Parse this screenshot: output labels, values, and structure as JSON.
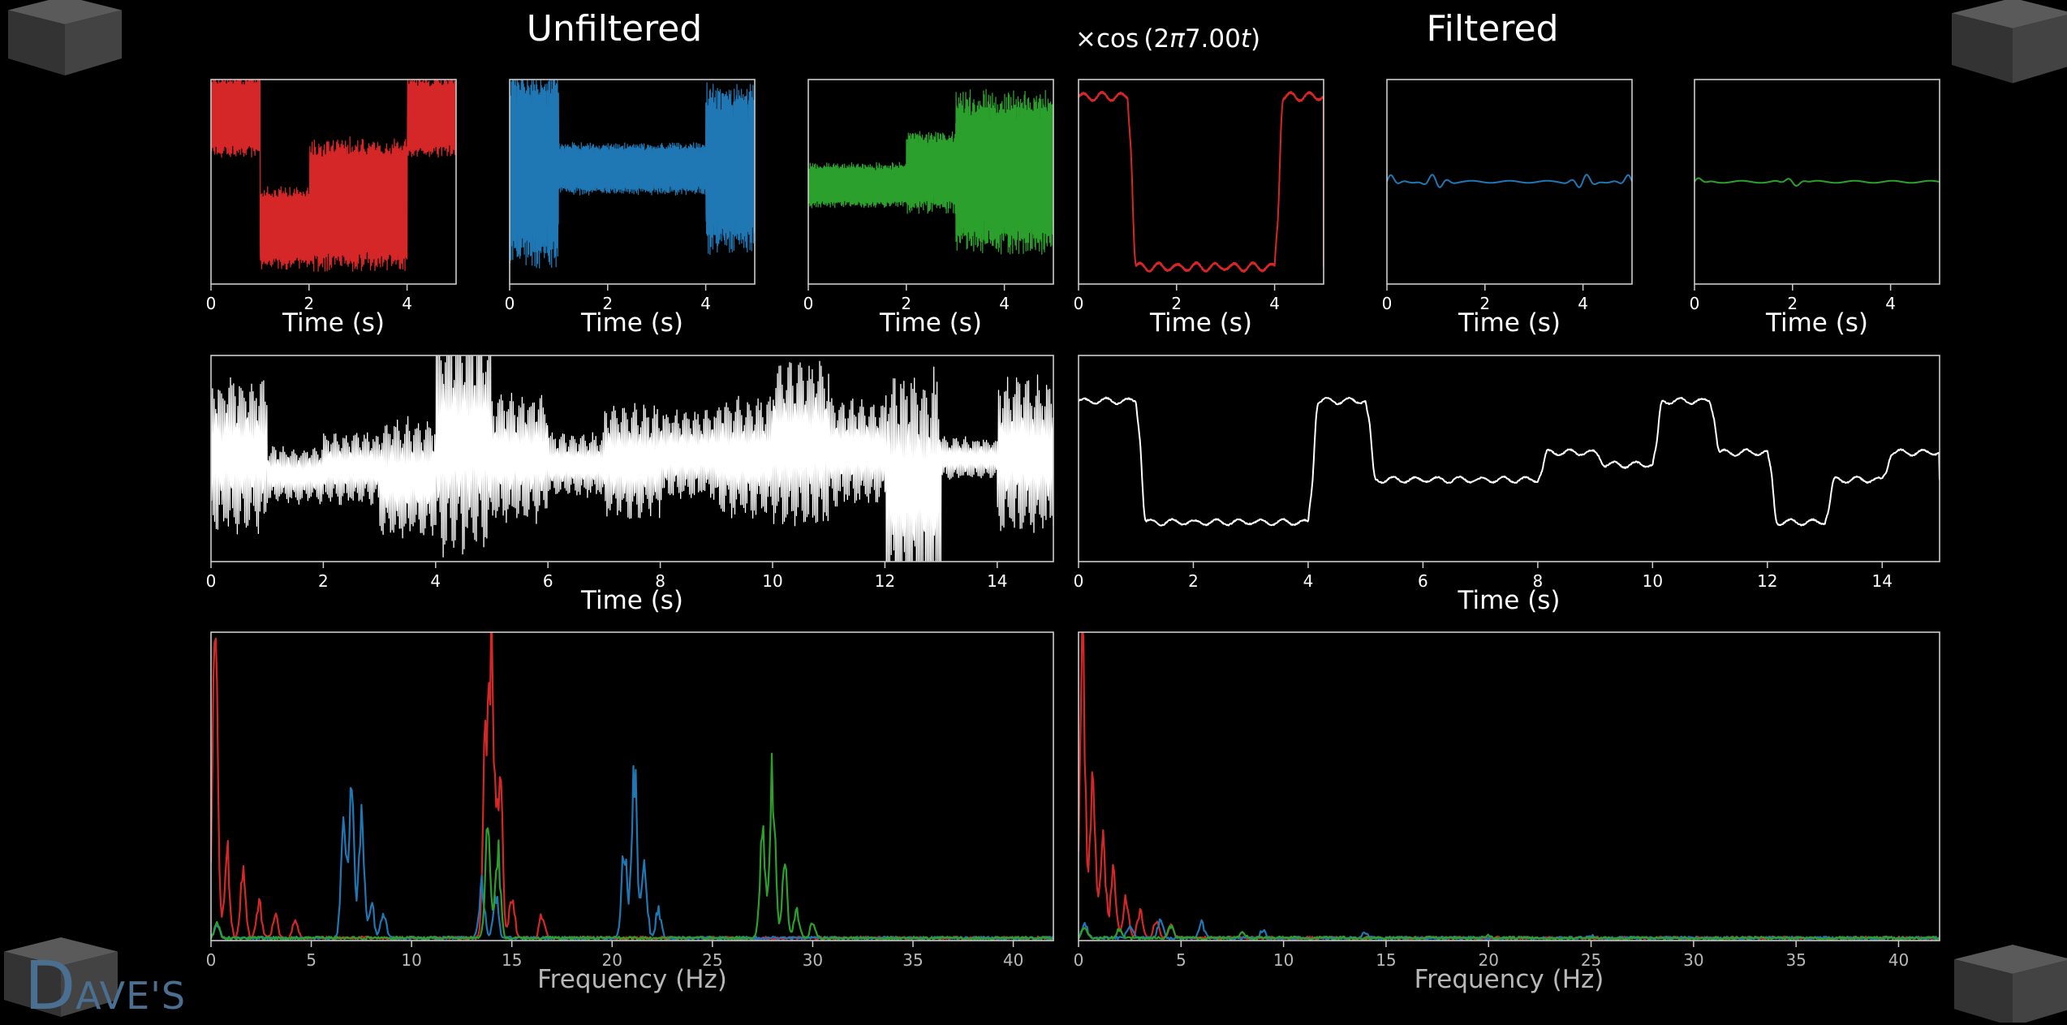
{
  "headings": {
    "unfiltered": "Unfiltered",
    "filtered": "Filtered",
    "multiplier": {
      "prefix": "×cos (2",
      "pi": "π",
      "value": "7.00",
      "var": "t",
      "suffix": ")"
    }
  },
  "logo": {
    "letter": "D",
    "rest": "AVE'S"
  },
  "colors": {
    "red": "#d62728",
    "blue": "#1f77b4",
    "green": "#2ca02c",
    "white": "#ffffff",
    "axis": "#cccccc",
    "background": "#000000"
  },
  "chart_data": [
    {
      "id": "unfiltered-red",
      "type": "line",
      "color": "red",
      "xlabel": "Time (s)",
      "xticks": [
        "0",
        "2",
        "4"
      ],
      "xlim": [
        0,
        5
      ],
      "ylim": [
        -1.55,
        1.55
      ],
      "signal": {
        "kind": "modulated",
        "carrier_hz": 7,
        "segments": [
          {
            "t": [
              0,
              1
            ],
            "level": 1,
            "amp": 0.55
          },
          {
            "t": [
              1,
              2
            ],
            "level": -0.7,
            "amp": 0.55
          },
          {
            "t": [
              2,
              4
            ],
            "level": -0.35,
            "amp": 0.9
          },
          {
            "t": [
              4,
              5
            ],
            "level": 1,
            "amp": 0.55
          }
        ]
      }
    },
    {
      "id": "unfiltered-blue",
      "type": "line",
      "color": "blue",
      "xlabel": "Time (s)",
      "xticks": [
        "0",
        "2",
        "4"
      ],
      "xlim": [
        0,
        5
      ],
      "ylim": [
        -1.55,
        1.55
      ],
      "signal": {
        "kind": "modulated",
        "carrier_hz": 14,
        "segments": [
          {
            "t": [
              0,
              1
            ],
            "level": 0.2,
            "amp": 1.35
          },
          {
            "t": [
              1,
              4
            ],
            "level": 0.2,
            "amp": 0.35
          },
          {
            "t": [
              4,
              5
            ],
            "level": 0.2,
            "amp": 1.15
          }
        ]
      }
    },
    {
      "id": "unfiltered-green",
      "type": "line",
      "color": "green",
      "xlabel": "Time (s)",
      "xticks": [
        "0",
        "2",
        "4"
      ],
      "xlim": [
        0,
        5
      ],
      "ylim": [
        -1.55,
        1.55
      ],
      "signal": {
        "kind": "modulated",
        "carrier_hz": 21,
        "segments": [
          {
            "t": [
              0,
              2
            ],
            "level": -0.05,
            "amp": 0.3
          },
          {
            "t": [
              2,
              3
            ],
            "level": 0.15,
            "amp": 0.55
          },
          {
            "t": [
              3,
              5
            ],
            "level": 0.15,
            "amp": 1.1
          }
        ]
      }
    },
    {
      "id": "filtered-red",
      "type": "line",
      "color": "red",
      "xlabel": "Time (s)",
      "xticks": [
        "0",
        "2",
        "4"
      ],
      "xlim": [
        0,
        5
      ],
      "ylim": [
        -1.2,
        1.2
      ],
      "signal": {
        "kind": "step",
        "levels": [
          1,
          -1,
          -1,
          -1,
          1
        ]
      }
    },
    {
      "id": "filtered-blue",
      "type": "line",
      "color": "blue",
      "xlabel": "Time (s)",
      "xticks": [
        "0",
        "2",
        "4"
      ],
      "xlim": [
        0,
        5
      ],
      "ylim": [
        -1.2,
        1.2
      ],
      "signal": {
        "kind": "ripple",
        "base": 0,
        "amp": 0.08,
        "edges": [
          0,
          1,
          4,
          5
        ]
      }
    },
    {
      "id": "filtered-green",
      "type": "line",
      "color": "green",
      "xlabel": "Time (s)",
      "xticks": [
        "0",
        "2",
        "4"
      ],
      "xlim": [
        0,
        5
      ],
      "ylim": [
        -1.2,
        1.2
      ],
      "signal": {
        "kind": "ripple",
        "base": 0,
        "amp": 0.04,
        "edges": [
          0,
          2
        ]
      }
    },
    {
      "id": "combined-unfiltered",
      "type": "line",
      "color": "white",
      "xlabel": "Time (s)",
      "xticks": [
        "0",
        "2",
        "4",
        "6",
        "8",
        "10",
        "12",
        "14"
      ],
      "xlim": [
        0,
        15
      ],
      "ylim": [
        -1.6,
        1.6
      ],
      "signal": {
        "kind": "modulated",
        "carrier_hz": 11,
        "segments": [
          {
            "t": [
              0,
              1
            ],
            "level": 0.05,
            "amp": 1.1
          },
          {
            "t": [
              1,
              2
            ],
            "level": -0.25,
            "amp": 0.4
          },
          {
            "t": [
              2,
              3
            ],
            "level": -0.15,
            "amp": 0.5
          },
          {
            "t": [
              3,
              4
            ],
            "level": -0.3,
            "amp": 0.85
          },
          {
            "t": [
              4,
              5
            ],
            "level": 0.25,
            "amp": 1.6
          },
          {
            "t": [
              5,
              6
            ],
            "level": 0,
            "amp": 0.9
          },
          {
            "t": [
              6,
              7
            ],
            "level": -0.1,
            "amp": 0.45
          },
          {
            "t": [
              7,
              8
            ],
            "level": -0.05,
            "amp": 0.8
          },
          {
            "t": [
              8,
              9
            ],
            "level": 0.05,
            "amp": 0.65
          },
          {
            "t": [
              9,
              10
            ],
            "level": 0,
            "amp": 0.85
          },
          {
            "t": [
              10,
              11
            ],
            "level": 0.2,
            "amp": 1.2
          },
          {
            "t": [
              11,
              12
            ],
            "level": 0.1,
            "amp": 0.75
          },
          {
            "t": [
              12,
              13
            ],
            "level": -0.4,
            "amp": 1.6
          },
          {
            "t": [
              13,
              14
            ],
            "level": 0,
            "amp": 0.3
          },
          {
            "t": [
              14,
              15
            ],
            "level": 0.05,
            "amp": 1.1
          }
        ]
      }
    },
    {
      "id": "combined-filtered",
      "type": "line",
      "color": "white",
      "xlabel": "Time (s)",
      "xticks": [
        "0",
        "2",
        "4",
        "6",
        "8",
        "10",
        "12",
        "14"
      ],
      "xlim": [
        0,
        15
      ],
      "ylim": [
        -1.7,
        1.7
      ],
      "signal": {
        "kind": "step",
        "levels": [
          0.95,
          -1.05,
          -1.05,
          -1.05,
          0.95,
          -0.35,
          -0.35,
          -0.35,
          0.1,
          -0.1,
          0.95,
          0.1,
          -1.05,
          -0.35,
          0.1
        ]
      }
    },
    {
      "id": "spectrum-unfiltered",
      "type": "line",
      "xlabel": "Frequency (Hz)",
      "xticks": [
        "0",
        "5",
        "10",
        "15",
        "20",
        "25",
        "30",
        "35",
        "40"
      ],
      "xlim": [
        0,
        42
      ],
      "ylim": [
        0,
        1.08
      ],
      "series": [
        {
          "color": "red",
          "peaks": [
            [
              0.2,
              1.0
            ],
            [
              0.8,
              0.3
            ],
            [
              1.6,
              0.22
            ],
            [
              2.4,
              0.12
            ],
            [
              3.2,
              0.08
            ],
            [
              4.2,
              0.06
            ],
            [
              13.7,
              0.72
            ],
            [
              14.0,
              0.95
            ],
            [
              14.4,
              0.6
            ],
            [
              15.0,
              0.15
            ],
            [
              16.5,
              0.08
            ]
          ]
        },
        {
          "color": "blue",
          "peaks": [
            [
              0.3,
              0.05
            ],
            [
              6.6,
              0.35
            ],
            [
              7.0,
              0.5
            ],
            [
              7.5,
              0.4
            ],
            [
              8.0,
              0.12
            ],
            [
              8.6,
              0.08
            ],
            [
              13.5,
              0.2
            ],
            [
              14.2,
              0.15
            ],
            [
              20.6,
              0.32
            ],
            [
              21.1,
              0.6
            ],
            [
              21.6,
              0.3
            ],
            [
              22.3,
              0.1
            ]
          ]
        },
        {
          "color": "green",
          "peaks": [
            [
              0.3,
              0.05
            ],
            [
              13.8,
              0.4
            ],
            [
              14.3,
              0.3
            ],
            [
              27.5,
              0.35
            ],
            [
              28.0,
              0.58
            ],
            [
              28.6,
              0.25
            ],
            [
              29.2,
              0.1
            ],
            [
              30.0,
              0.05
            ]
          ]
        }
      ]
    },
    {
      "id": "spectrum-filtered",
      "type": "line",
      "xlabel": "Frequency (Hz)",
      "xticks": [
        "0",
        "5",
        "10",
        "15",
        "20",
        "25",
        "30",
        "35",
        "40"
      ],
      "xlim": [
        0,
        42
      ],
      "ylim": [
        0,
        1.08
      ],
      "series": [
        {
          "color": "red",
          "peaks": [
            [
              0.2,
              1.0
            ],
            [
              0.7,
              0.55
            ],
            [
              1.2,
              0.35
            ],
            [
              1.7,
              0.22
            ],
            [
              2.3,
              0.14
            ],
            [
              3.0,
              0.09
            ],
            [
              3.8,
              0.06
            ],
            [
              4.5,
              0.04
            ]
          ]
        },
        {
          "color": "blue",
          "peaks": [
            [
              0.3,
              0.05
            ],
            [
              2.5,
              0.05
            ],
            [
              4.0,
              0.06
            ],
            [
              6.0,
              0.05
            ],
            [
              9.0,
              0.03
            ],
            [
              14,
              0.02
            ],
            [
              25,
              0.01
            ]
          ]
        },
        {
          "color": "green",
          "peaks": [
            [
              0.3,
              0.04
            ],
            [
              2.0,
              0.03
            ],
            [
              4.5,
              0.04
            ],
            [
              8.0,
              0.02
            ],
            [
              20,
              0.01
            ]
          ]
        }
      ]
    }
  ]
}
